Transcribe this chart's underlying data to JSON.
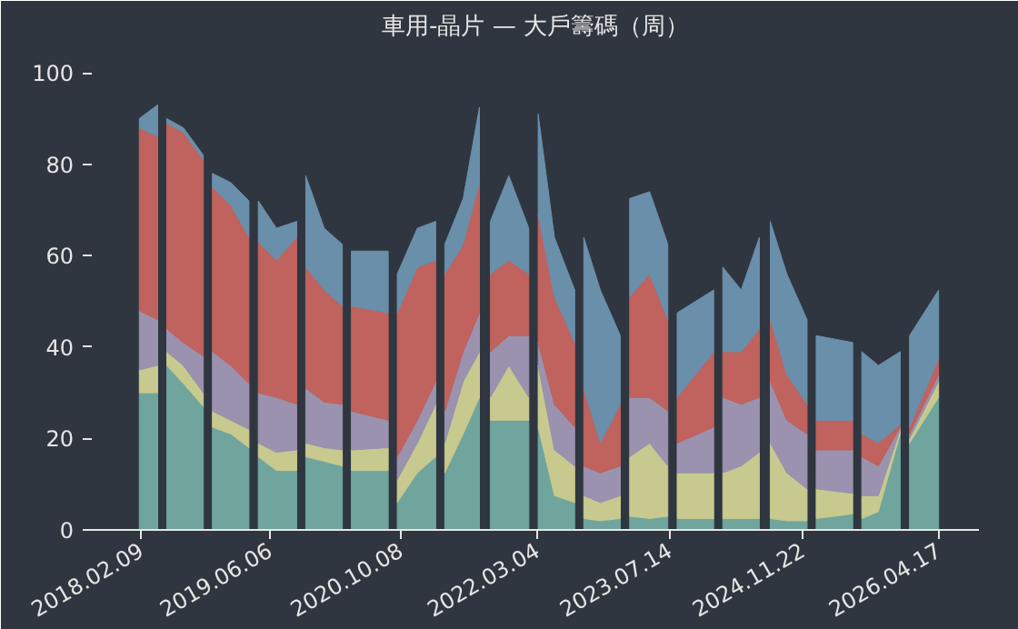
{
  "chart_data": {
    "type": "area",
    "stacked": true,
    "title": "車用-晶片 — 大戶籌碼（周）",
    "x": [
      "2018-02-02",
      "2018-04-12",
      "2018-04-29",
      "2018-05-16",
      "2018-07-17",
      "2018-09-30",
      "2018-10-17",
      "2018-11-03",
      "2019-01-11",
      "2019-03-20",
      "2019-04-07",
      "2019-04-24",
      "2019-07-01",
      "2019-09-15",
      "2019-10-02",
      "2019-10-19",
      "2019-12-27",
      "2020-03-04",
      "2020-03-21",
      "2020-04-07",
      "2020-08-23",
      "2020-09-09",
      "2020-09-26",
      "2020-12-10",
      "2021-02-17",
      "2021-03-06",
      "2021-03-23",
      "2021-05-31",
      "2021-07-31",
      "2021-08-24",
      "2021-09-10",
      "2021-11-18",
      "2022-02-01",
      "2022-02-19",
      "2022-03-08",
      "2022-05-08",
      "2022-07-23",
      "2022-08-09",
      "2022-08-26",
      "2022-10-27",
      "2023-01-10",
      "2023-01-27",
      "2023-02-14",
      "2023-04-30",
      "2023-07-07",
      "2023-07-25",
      "2023-08-11",
      "2023-12-26",
      "2024-01-12",
      "2024-01-29",
      "2024-04-07",
      "2024-06-14",
      "2024-07-05",
      "2024-07-25",
      "2024-09-25",
      "2024-12-10",
      "2024-12-27",
      "2025-01-13",
      "2025-05-30",
      "2025-06-16",
      "2025-07-03",
      "2025-09-03",
      "2025-11-24",
      "2025-12-12",
      "2025-12-29",
      "2026-04-17"
    ],
    "series": [
      {
        "color": "#6fa59d",
        "values": [
          30,
          30,
          null,
          36,
          32,
          27,
          null,
          22.5,
          21,
          18,
          null,
          16,
          13,
          13,
          null,
          16,
          15,
          14,
          null,
          13,
          13,
          null,
          6,
          12.5,
          16,
          null,
          12.5,
          21,
          29,
          null,
          24,
          24,
          24,
          null,
          22.5,
          7.5,
          6,
          null,
          2.5,
          2,
          2.5,
          null,
          3,
          2.5,
          3,
          null,
          2.5,
          2.5,
          null,
          2.5,
          2.5,
          2.5,
          null,
          2.5,
          2,
          2,
          null,
          2.5,
          3.5,
          null,
          2.5,
          4,
          21,
          null,
          19,
          29
        ]
      },
      {
        "color": "#c7c98e",
        "values": [
          5,
          6,
          null,
          3,
          4,
          3,
          null,
          3.5,
          3,
          4,
          null,
          3,
          4,
          4.5,
          null,
          3,
          3,
          3.5,
          null,
          4.5,
          5,
          null,
          5,
          6.5,
          11.5,
          null,
          6.5,
          11.5,
          10,
          null,
          5,
          12,
          5,
          null,
          13.5,
          10,
          8,
          null,
          5,
          4,
          5,
          null,
          13,
          16.5,
          11,
          null,
          10,
          10,
          null,
          10,
          11.5,
          14.5,
          null,
          16.5,
          10.5,
          7,
          null,
          6.5,
          4.5,
          null,
          5,
          3.5,
          1,
          null,
          1,
          3.5
        ]
      },
      {
        "color": "#9a92ae",
        "values": [
          13,
          10,
          null,
          5,
          5,
          8,
          null,
          13,
          12,
          10,
          null,
          11,
          12,
          10,
          null,
          12,
          10,
          10,
          null,
          8.5,
          6,
          null,
          5,
          5,
          5,
          null,
          7,
          6.5,
          8.5,
          null,
          10,
          6.5,
          13.5,
          null,
          5,
          10,
          8.5,
          null,
          6.5,
          6.5,
          6.5,
          null,
          13,
          10,
          12,
          null,
          6.5,
          10,
          null,
          16.5,
          13.5,
          12,
          null,
          13.5,
          11.5,
          12,
          null,
          8.5,
          9.5,
          null,
          8.5,
          6.5,
          0.5,
          null,
          1,
          1.5
        ]
      },
      {
        "color": "#c0625e",
        "values": [
          40,
          40,
          null,
          45,
          46,
          43,
          null,
          36,
          35,
          32,
          null,
          33,
          30,
          36.5,
          null,
          26.5,
          24.5,
          21.5,
          null,
          23,
          23.5,
          null,
          31.5,
          33.5,
          26.5,
          null,
          30,
          23.5,
          28.5,
          null,
          17,
          16.5,
          13.5,
          null,
          28,
          23.5,
          18.5,
          null,
          17,
          6.5,
          13.5,
          null,
          22,
          27,
          20,
          null,
          10,
          16.5,
          null,
          10,
          11.5,
          15,
          null,
          13.5,
          10,
          6.5,
          null,
          6.5,
          6.5,
          null,
          5,
          5,
          0.5,
          null,
          1.5,
          3.5
        ]
      },
      {
        "color": "#6a8fab",
        "values": [
          2,
          7,
          null,
          1,
          1,
          1,
          null,
          3,
          5,
          8,
          null,
          9,
          7,
          3.5,
          null,
          20,
          13.5,
          13.5,
          null,
          12,
          13.5,
          null,
          8.5,
          8.5,
          8.5,
          null,
          6.5,
          10,
          16.5,
          null,
          11.5,
          18.5,
          10,
          null,
          22,
          13,
          11.5,
          null,
          33,
          33.5,
          15,
          null,
          21.5,
          18,
          16.5,
          null,
          18.5,
          13.5,
          null,
          18.5,
          13.5,
          20,
          null,
          21.5,
          22,
          18.5,
          null,
          18.5,
          17,
          null,
          18,
          17,
          16,
          null,
          20,
          15
        ]
      }
    ],
    "xlim": [
      "2017-08-08",
      "2026-09-15"
    ],
    "xticks": [
      {
        "value": "2018-02-09",
        "label": "2018.02.09"
      },
      {
        "value": "2019-06-06",
        "label": "2019.06.06"
      },
      {
        "value": "2020-10-08",
        "label": "2020.10.08"
      },
      {
        "value": "2022-03-04",
        "label": "2022.03.04"
      },
      {
        "value": "2023-07-14",
        "label": "2023.07.14"
      },
      {
        "value": "2024-11-22",
        "label": "2024.11.22"
      },
      {
        "value": "2026-04-17",
        "label": "2026.04.17"
      }
    ],
    "ylim": [
      0,
      105
    ],
    "yticks": [
      0,
      20,
      40,
      60,
      80,
      100
    ]
  }
}
